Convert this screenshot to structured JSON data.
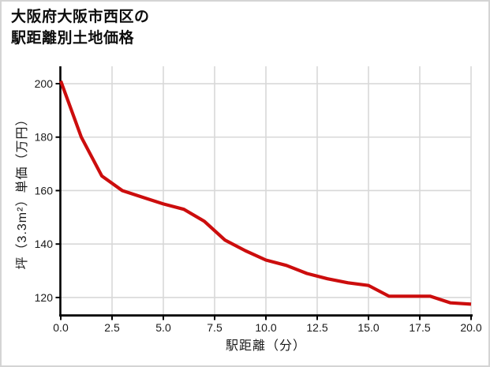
{
  "title": {
    "line1": "大阪府大阪市西区の",
    "line2": "駅距離別土地価格"
  },
  "chart_data": {
    "type": "line",
    "title": "大阪府大阪市西区の駅距離別土地価格",
    "xlabel": "駅距離（分）",
    "ylabel": "坪（3.3m²）単価（万円）",
    "x": [
      0,
      1,
      2,
      3,
      4,
      5,
      6,
      7,
      8,
      9,
      10,
      11,
      12,
      13,
      14,
      15,
      16,
      17,
      18,
      19,
      20
    ],
    "values": [
      201,
      180,
      165.5,
      160,
      157.5,
      155,
      153,
      148.5,
      141.5,
      137.5,
      134,
      132,
      129,
      127,
      125.5,
      124.5,
      120.5,
      120.5,
      120.5,
      118,
      117.5
    ],
    "series_name": "駅距離別土地価格",
    "xlim": [
      0,
      20
    ],
    "ylim": [
      112.9,
      206.5
    ],
    "x_tick_values": [
      0,
      2.5,
      5,
      7.5,
      10,
      12.5,
      15,
      17.5,
      20
    ],
    "x_tick_labels": [
      "0.0",
      "2.5",
      "5.0",
      "7.5",
      "10.0",
      "12.5",
      "15.0",
      "17.5",
      "20.0"
    ],
    "y_tick_values": [
      200,
      180,
      160,
      140,
      120
    ],
    "y_tick_labels": [
      "200",
      "180",
      "160",
      "140",
      "120"
    ],
    "grid": true,
    "legend": "none",
    "colors": {
      "line": "#cc0d0d",
      "axis": "#000000",
      "grid": "#d8d8d8",
      "text": "#1a1a1a",
      "background": "#ffffff",
      "frame_border": "#d4d4d4"
    }
  }
}
